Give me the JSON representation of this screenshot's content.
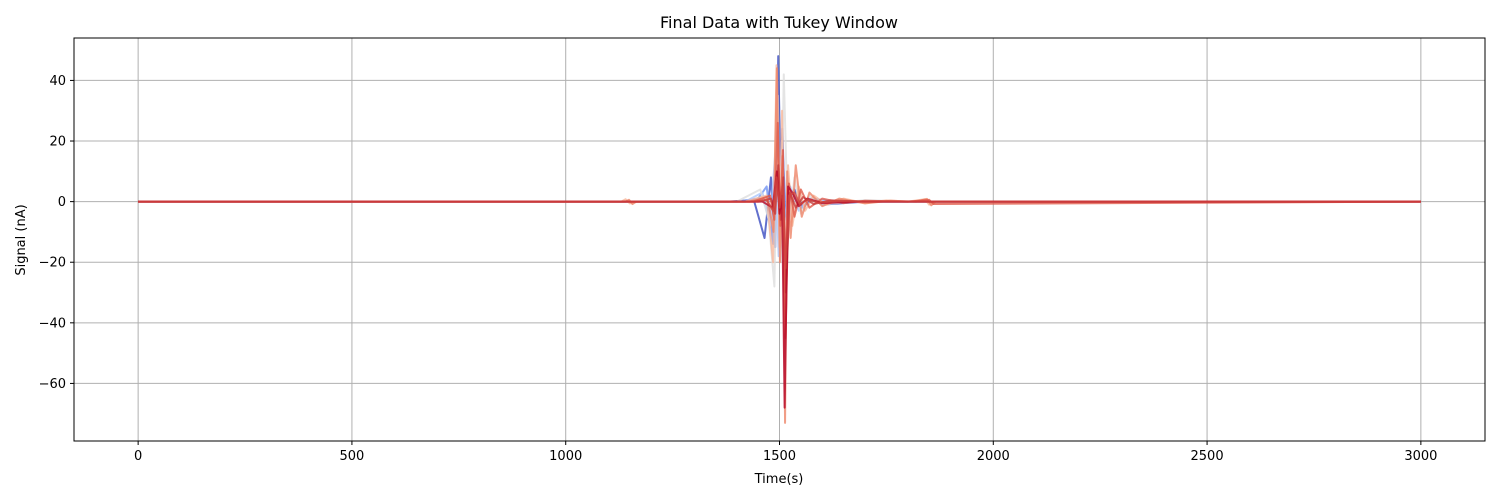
{
  "chart_data": {
    "type": "line",
    "title": "Final Data with Tukey Window",
    "xlabel": "Time(s)",
    "ylabel": "Signal (nA)",
    "xlim": [
      -150,
      3150
    ],
    "ylim": [
      -79,
      54
    ],
    "xticks": [
      0,
      500,
      1000,
      1500,
      2000,
      2500,
      3000
    ],
    "xtick_labels": [
      "0",
      "500",
      "1000",
      "1500",
      "2000",
      "2500",
      "3000"
    ],
    "yticks": [
      -60,
      -40,
      -20,
      0,
      20,
      40
    ],
    "ytick_labels": [
      "−60",
      "−40",
      "−20",
      "0",
      "20",
      "40"
    ],
    "grid": true,
    "legend": "none",
    "colormap": "coolwarm",
    "series": [
      {
        "color": "#3b4cc0",
        "x": [
          0,
          1380,
          1440,
          1465,
          1480,
          1490,
          1497,
          1502,
          1507,
          1512,
          1520,
          1535,
          1555,
          1575,
          1600,
          1700,
          3000
        ],
        "y": [
          0,
          0,
          0.5,
          -12,
          8,
          -15,
          48,
          12,
          24,
          -5,
          2,
          4,
          -2,
          1,
          -1,
          0,
          0
        ]
      },
      {
        "color": "#6f92f3",
        "x": [
          0,
          1400,
          1450,
          1470,
          1485,
          1495,
          1502,
          1508,
          1515,
          1530,
          1550,
          1580,
          1620,
          3000
        ],
        "y": [
          0,
          0,
          1,
          5,
          -14,
          30,
          -10,
          15,
          -4,
          3,
          -2,
          1,
          0,
          0
        ]
      },
      {
        "color": "#aac7fd",
        "x": [
          0,
          1420,
          1460,
          1478,
          1490,
          1498,
          1505,
          1512,
          1525,
          1545,
          1570,
          1650,
          3000
        ],
        "y": [
          0,
          0,
          3,
          -8,
          16,
          -18,
          20,
          -6,
          5,
          -3,
          1,
          0,
          0
        ]
      },
      {
        "color": "#dddddd",
        "x": [
          0,
          1400,
          1455,
          1475,
          1488,
          1496,
          1503,
          1510,
          1520,
          1535,
          1550,
          1570,
          1600,
          1700,
          1800,
          3000
        ],
        "y": [
          0,
          0,
          4,
          -6,
          -28,
          35,
          -20,
          42,
          -10,
          8,
          -4,
          2,
          -1,
          0.5,
          0,
          0
        ]
      },
      {
        "color": "#f7b89c",
        "x": [
          0,
          1130,
          1140,
          1150,
          1160,
          1420,
          1470,
          1485,
          1493,
          1500,
          1506,
          1512,
          1520,
          1530,
          1545,
          1560,
          1580,
          1610,
          1650,
          1700,
          1750,
          1800,
          1840,
          1850,
          1860,
          1900,
          3000
        ],
        "y": [
          0,
          0,
          0.8,
          -0.6,
          0,
          0,
          2,
          -20,
          45,
          -15,
          30,
          -40,
          12,
          -8,
          5,
          -3,
          2,
          -1,
          1,
          -0.5,
          0.4,
          0,
          0.8,
          -1,
          0,
          0,
          0
        ]
      },
      {
        "color": "#ee8468",
        "x": [
          0,
          1140,
          1148,
          1156,
          1165,
          1430,
          1472,
          1486,
          1494,
          1501,
          1507,
          1513,
          1518,
          1526,
          1538,
          1552,
          1570,
          1600,
          1640,
          1700,
          1760,
          1820,
          1845,
          1855,
          1865,
          1920,
          3000
        ],
        "y": [
          0,
          0,
          0.6,
          -0.8,
          0,
          0,
          1.5,
          -10,
          44,
          -20,
          15,
          -73,
          10,
          -12,
          12,
          -5,
          3,
          -1.5,
          1,
          -0.6,
          0.3,
          0,
          0.9,
          -1.2,
          0,
          0,
          0
        ]
      },
      {
        "color": "#e05a4a",
        "x": [
          0,
          1440,
          1478,
          1488,
          1496,
          1502,
          1508,
          1514,
          1522,
          1535,
          1550,
          1570,
          1600,
          1650,
          1700,
          1800,
          1850,
          1860,
          3000
        ],
        "y": [
          0,
          0,
          2,
          -6,
          26,
          -8,
          17,
          -45,
          6,
          -5,
          4,
          -2,
          1,
          -0.5,
          0.3,
          0,
          0.6,
          -0.8,
          0
        ]
      },
      {
        "color": "#c73b3b",
        "x": [
          0,
          1450,
          1480,
          1490,
          1497,
          1503,
          1509,
          1515,
          1524,
          1538,
          1555,
          1580,
          1620,
          1700,
          3000
        ],
        "y": [
          0,
          0,
          1,
          -4,
          12,
          -6,
          8,
          -30,
          3,
          -2,
          1.5,
          -0.8,
          0.4,
          0,
          0
        ]
      },
      {
        "color": "#b40426",
        "x": [
          0,
          1460,
          1484,
          1494,
          1500,
          1506,
          1512,
          1520,
          1530,
          1545,
          1565,
          1600,
          1680,
          3000
        ],
        "y": [
          0,
          0,
          -2,
          10,
          -4,
          2,
          -68,
          5,
          3,
          -1.5,
          1,
          -0.5,
          0,
          0
        ]
      },
      {
        "color": "#d0453f",
        "x": [
          0,
          1440,
          1470,
          1485,
          1493,
          1500,
          1507,
          1514,
          1522,
          1535,
          1548,
          1565,
          1590,
          1640,
          1720,
          3000
        ],
        "y": [
          0,
          0,
          0.5,
          -3,
          8,
          -2,
          5,
          -22,
          2,
          3,
          -1,
          0.8,
          -0.3,
          0.2,
          0,
          0
        ]
      }
    ]
  }
}
